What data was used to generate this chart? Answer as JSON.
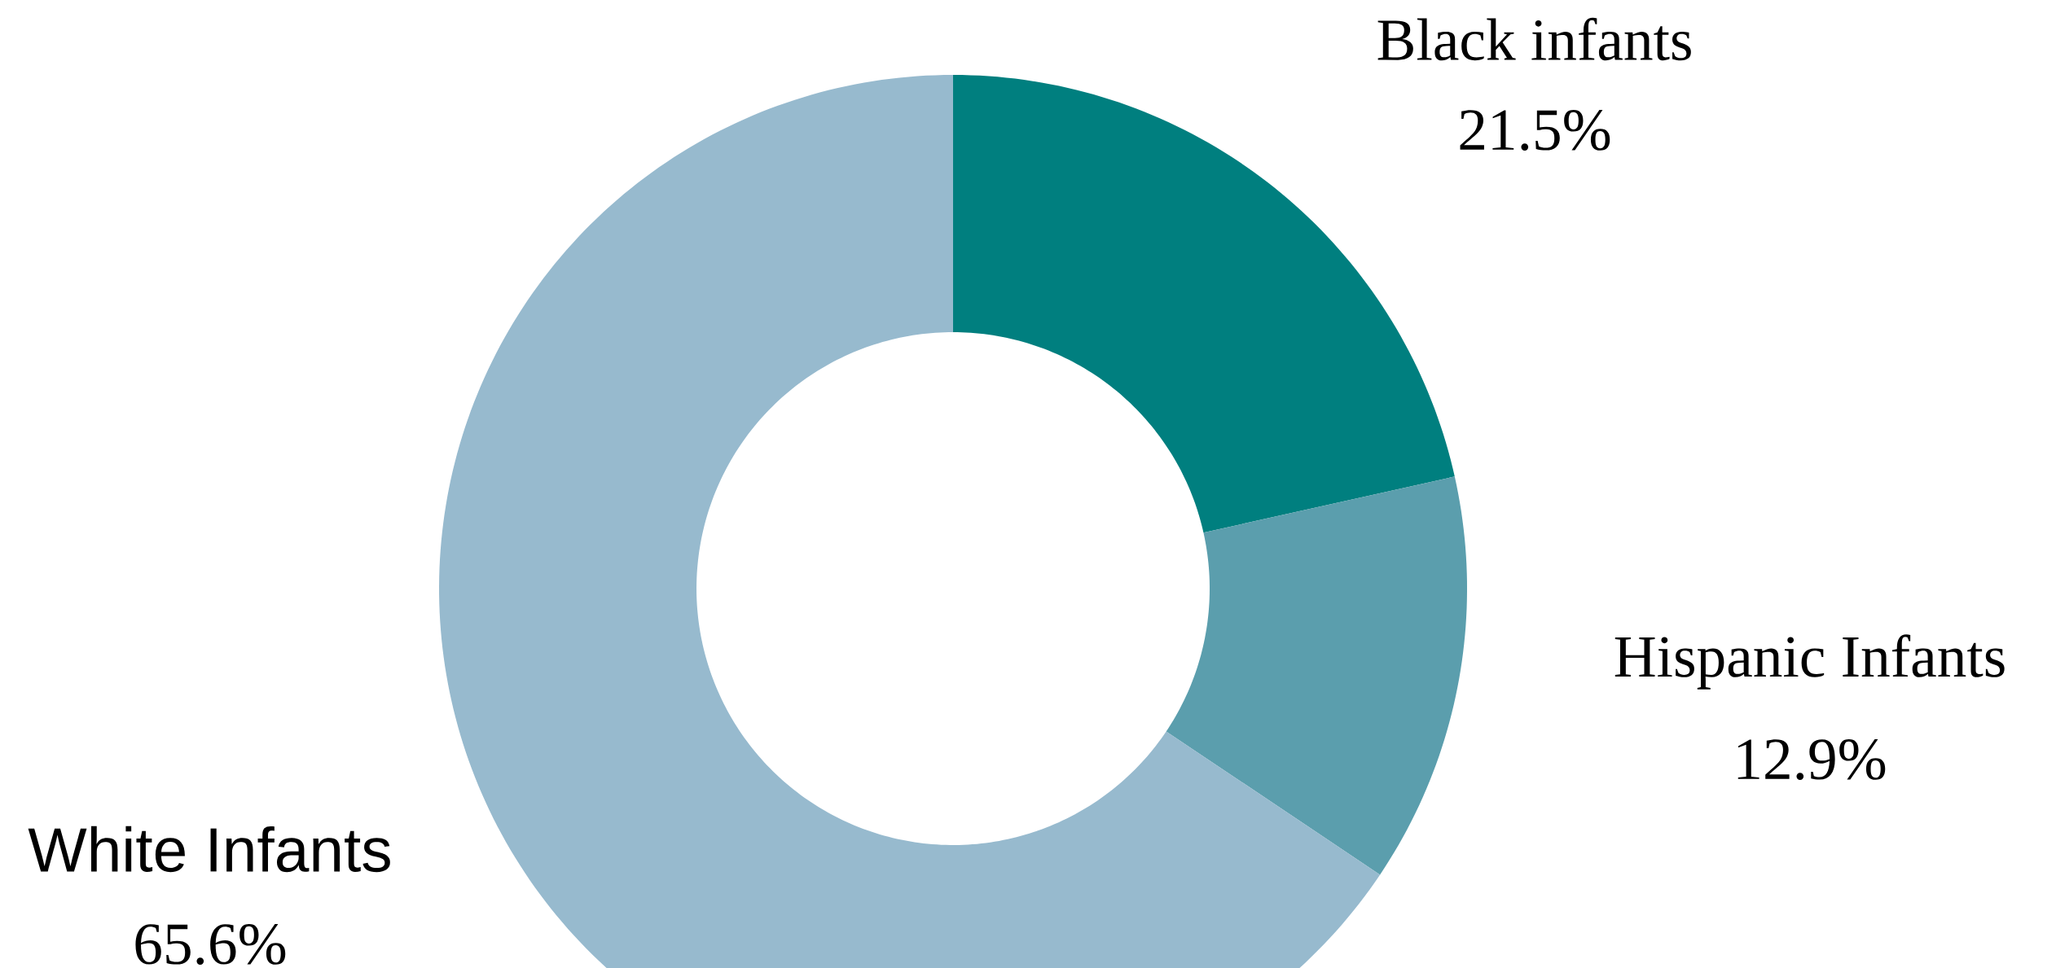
{
  "chart_data": {
    "type": "donut",
    "categories": [
      "Black infants",
      "Hispanic Infants",
      "White Infants"
    ],
    "values": [
      21.5,
      12.9,
      65.6
    ],
    "value_labels": [
      "21.5%",
      "12.9%",
      "65.6%"
    ],
    "colors": [
      "#007f7f",
      "#5b9ead",
      "#97bace"
    ]
  }
}
